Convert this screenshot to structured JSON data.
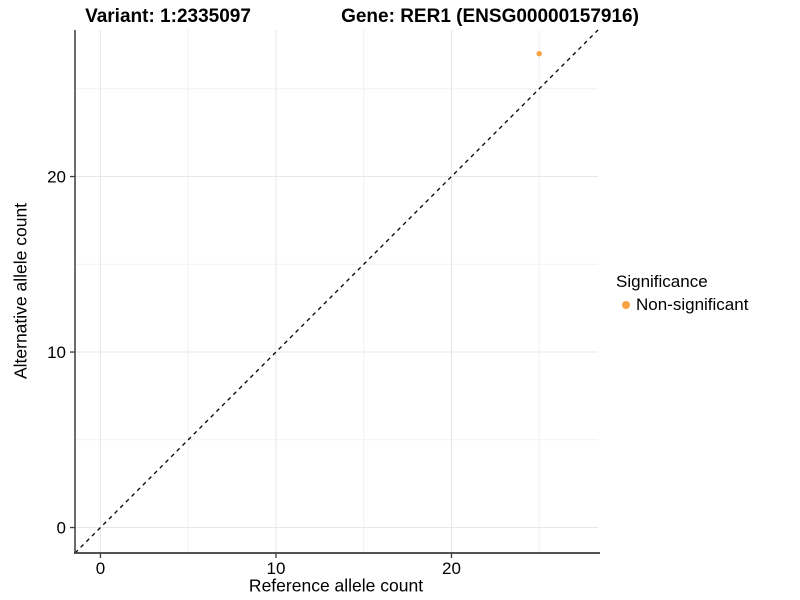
{
  "titles": {
    "variant": "Variant: 1:2335097",
    "gene": "Gene: RER1 (ENSG00000157916)"
  },
  "legend": {
    "title": "Significance",
    "items": [
      {
        "label": "Non-significant",
        "color": "#F9A242"
      }
    ]
  },
  "colors": {
    "point": "#F9A242",
    "grid_major": "#e7e7e7",
    "grid_minor": "#f1f1f1",
    "axis_line": "#3c3c3c",
    "tick_mark": "#3c3c3c",
    "dashed_line": "#000000",
    "background": "#ffffff"
  },
  "chart_data": {
    "type": "scatter",
    "title": "Variant: 1:2335097   Gene: RER1 (ENSG00000157916)",
    "xlabel": "Reference allele count",
    "ylabel": "Alternative allele count",
    "xlim": [
      -1.45,
      28.35
    ],
    "ylim": [
      -1.45,
      28.35
    ],
    "x_ticks": [
      0,
      10,
      20
    ],
    "y_ticks": [
      0,
      10,
      20
    ],
    "x_minor_ticks": [
      5,
      15,
      25
    ],
    "y_minor_ticks": [
      5,
      15,
      25
    ],
    "grid": true,
    "legend_title": "Significance",
    "legend_position": "right",
    "series": [
      {
        "name": "Non-significant",
        "color": "#F9A242",
        "points": [
          {
            "x": 25,
            "y": 27
          }
        ]
      }
    ],
    "reference_line": {
      "kind": "identity",
      "style": "dashed",
      "color": "#000000"
    }
  }
}
